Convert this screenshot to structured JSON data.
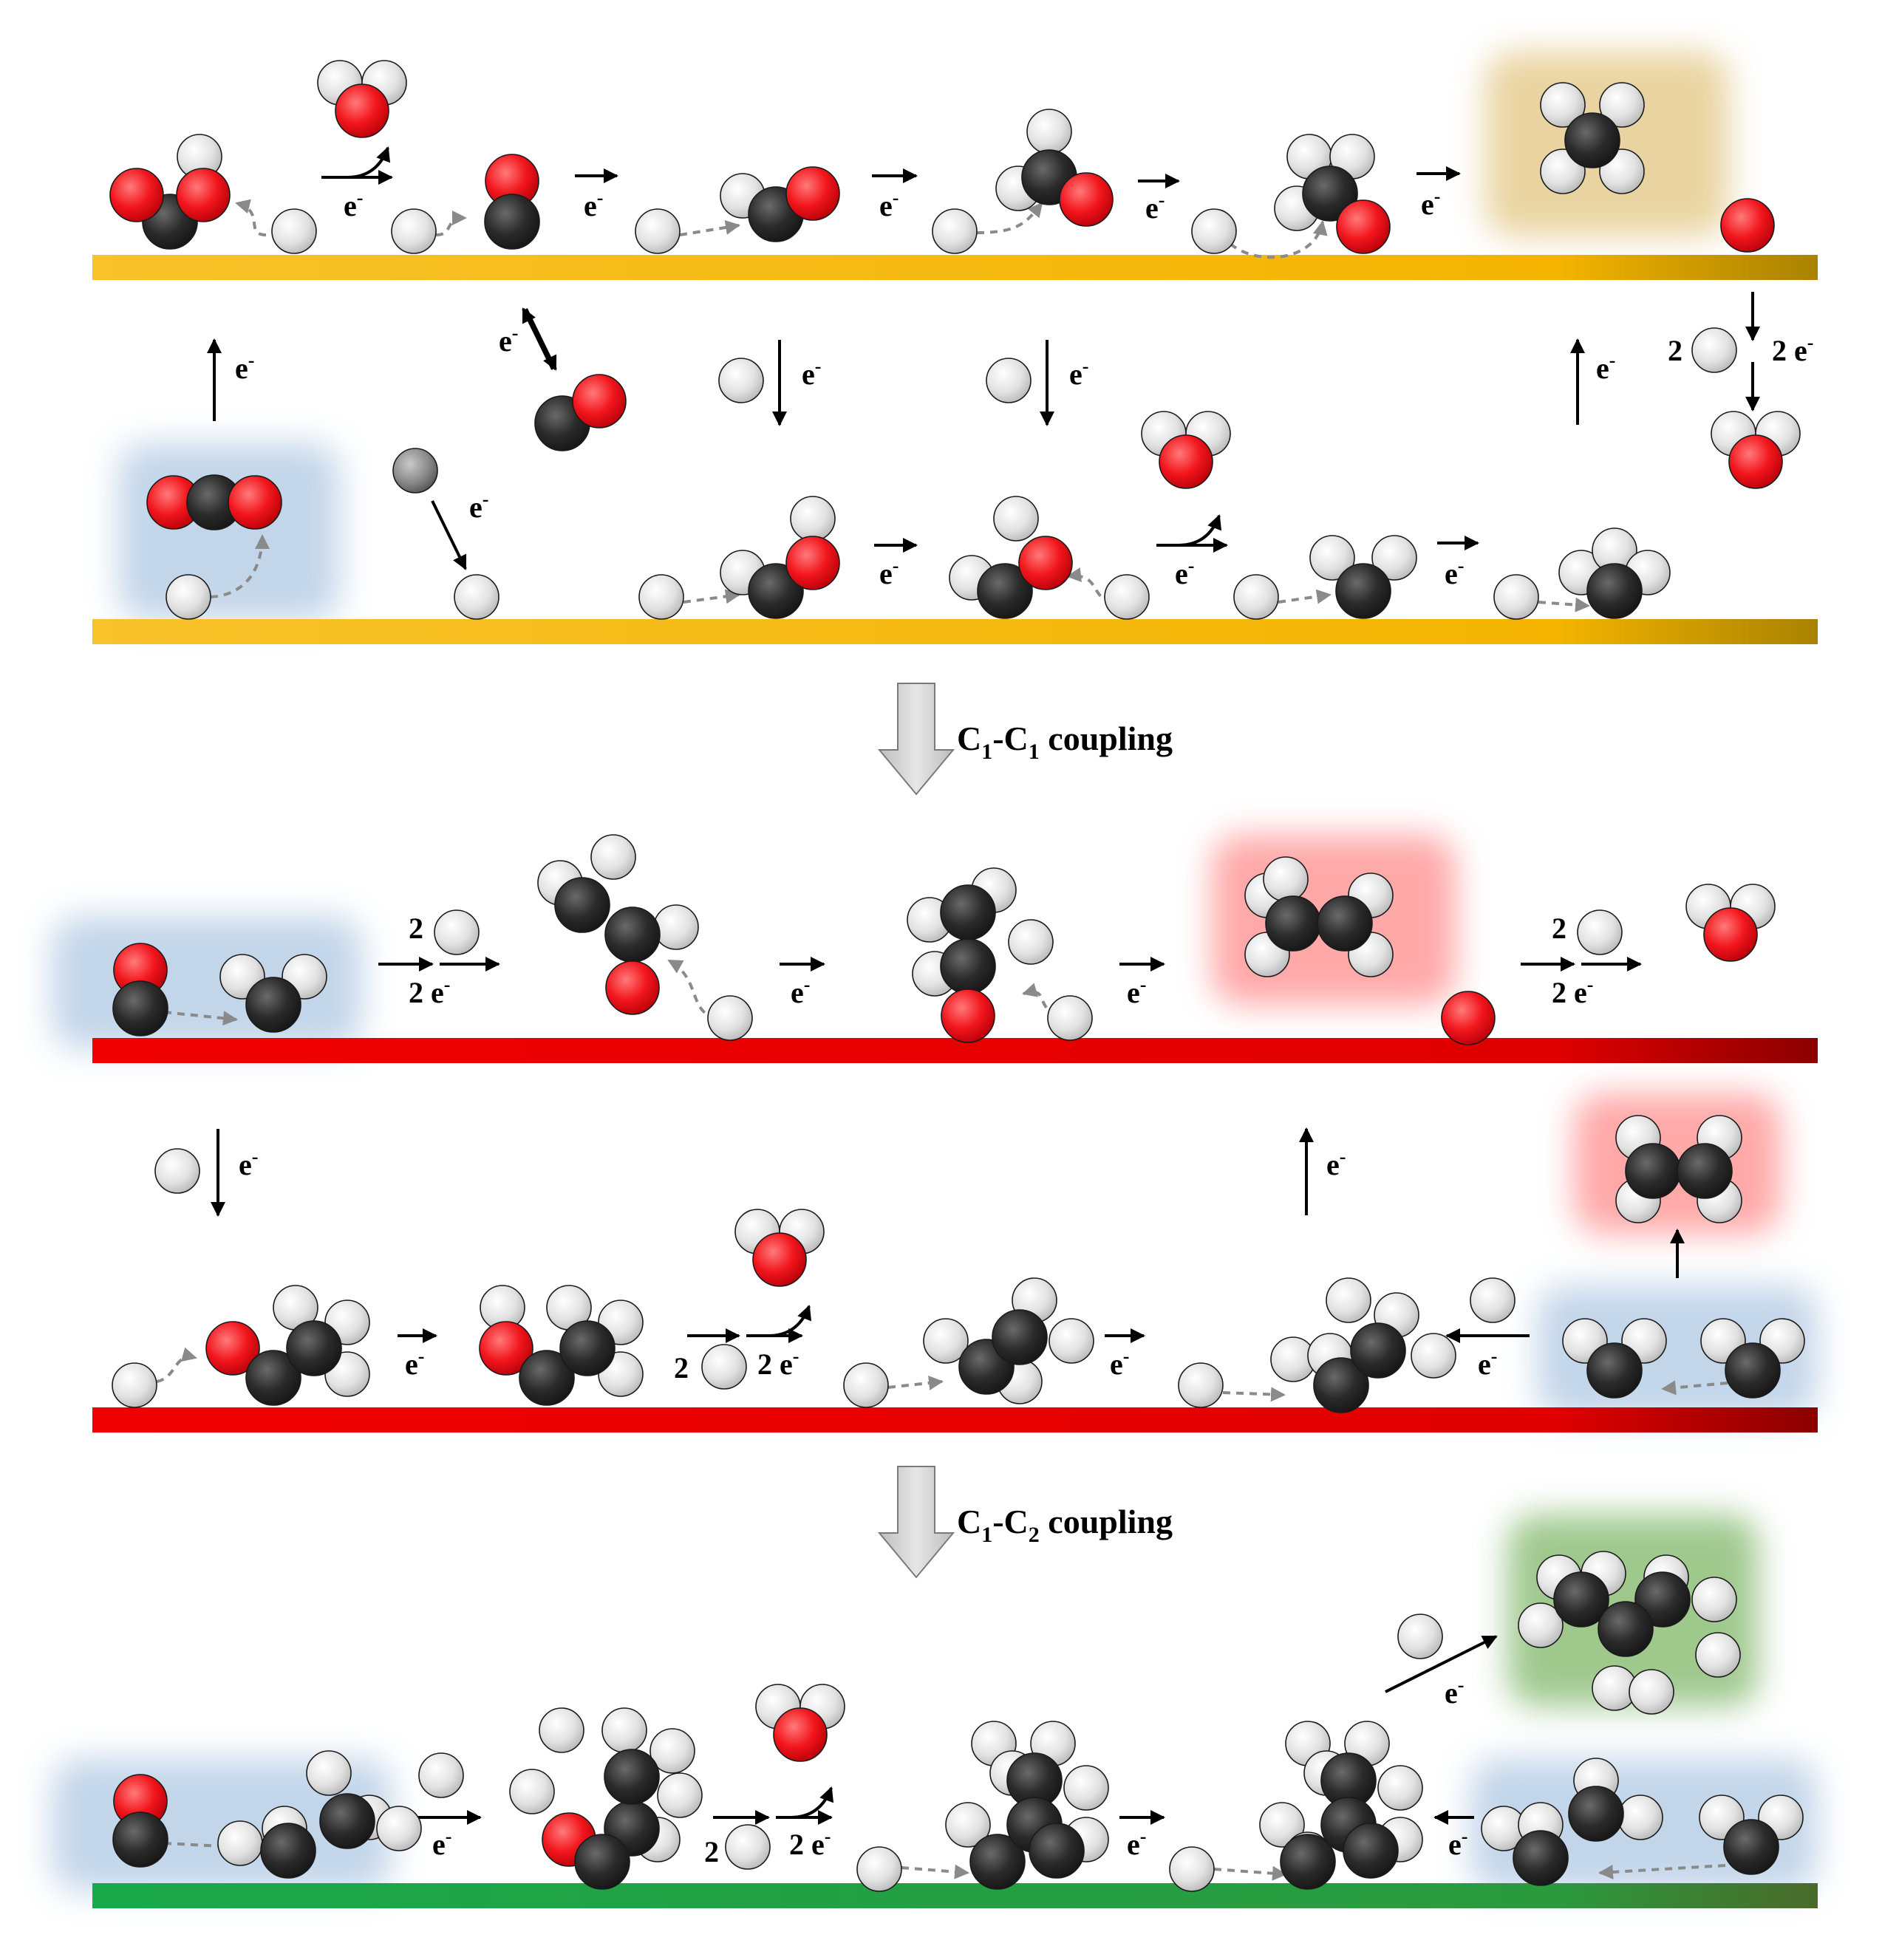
{
  "labels": {
    "electron": "e",
    "electron_sup": "-",
    "two": "2",
    "two_e": "2 e",
    "coupling_1_prefix": "C",
    "coupling_1_sub_a": "1",
    "coupling_1_mid": "-C",
    "coupling_1_sub_b": "1",
    "coupling_1_suffix": " coupling",
    "coupling_2_prefix": "C",
    "coupling_2_sub_a": "1",
    "coupling_2_mid": "-C",
    "coupling_2_sub_b": "2",
    "coupling_2_suffix": " coupling"
  },
  "colors": {
    "carbon": "#2b2b2b",
    "oxygen": "#e8141b",
    "hydrogen": "#dcdcdc",
    "surface_gold": "#f5b800",
    "surface_red": "#e30000",
    "surface_green": "#22a045",
    "glow_blue": "#b9cfe6",
    "glow_gold": "#e6cd91",
    "glow_red": "#ff8b8b",
    "glow_green": "#8fbf7a",
    "arrow": "#000000",
    "dashed_arrow": "#8a8a8a",
    "big_arrow_fill": "#d4d4d4"
  },
  "icons": [
    "carbon-atom",
    "oxygen-atom",
    "hydrogen-atom",
    "metal-atom",
    "reaction-arrow",
    "dashed-migration-arrow",
    "down-block-arrow"
  ]
}
